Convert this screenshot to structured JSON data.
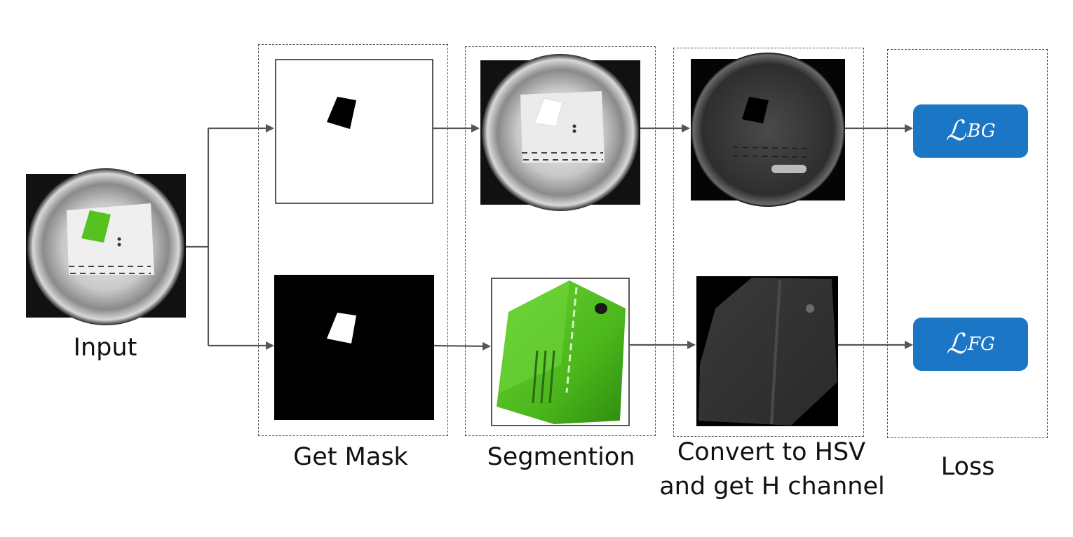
{
  "stages": {
    "input": "Input",
    "get_mask": "Get Mask",
    "segmentation": "Segmention",
    "hsv_line1": "Convert to HSV",
    "hsv_line2": "and get H channel",
    "loss": "Loss"
  },
  "losses": {
    "bg_symbol": "ℒ",
    "bg_sub": "BG",
    "fg_symbol": "ℒ",
    "fg_sub": "FG"
  },
  "colors": {
    "loss_fill": "#1b76c6",
    "arrow": "#555555",
    "object_green": "#55c21f"
  }
}
